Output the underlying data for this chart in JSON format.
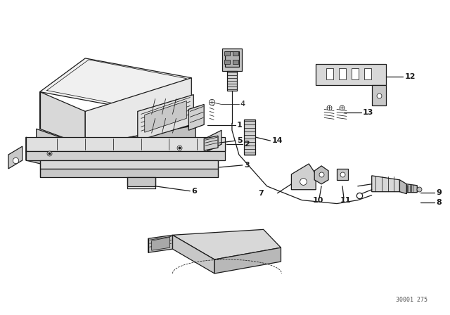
{
  "bg_color": "#ffffff",
  "line_color": "#1a1a1a",
  "fig_width": 6.4,
  "fig_height": 4.48,
  "dpi": 100,
  "watermark": "30001 275",
  "lw_main": 0.9,
  "lw_thin": 0.55,
  "lw_thick": 1.1
}
